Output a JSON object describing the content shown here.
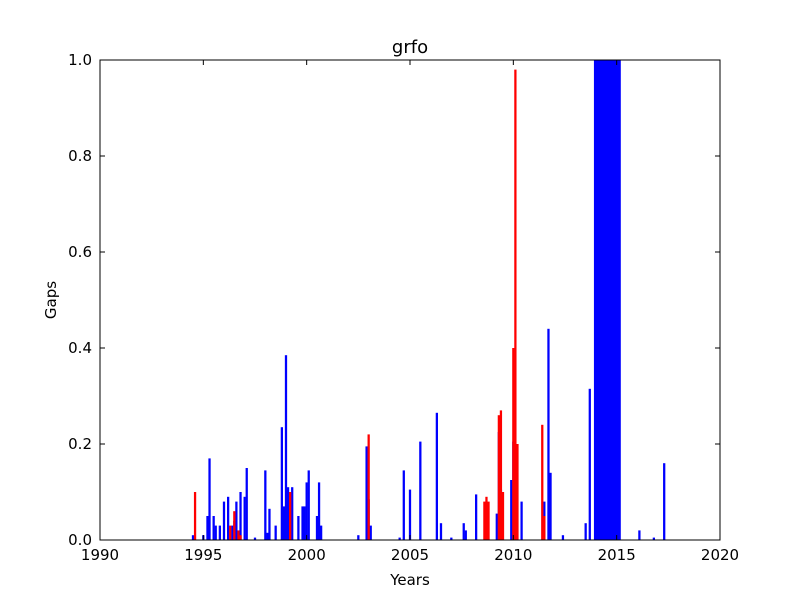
{
  "chart_data": {
    "type": "bar",
    "title": "grfo",
    "xlabel": "Years",
    "ylabel": "Gaps",
    "xlim": [
      1990,
      2020
    ],
    "ylim": [
      0.0,
      1.0
    ],
    "xticks": [
      1990,
      1995,
      2000,
      2005,
      2010,
      2015,
      2020
    ],
    "yticks": [
      0.0,
      0.2,
      0.4,
      0.6,
      0.8,
      1.0
    ],
    "xtick_labels": [
      "1990",
      "1995",
      "2000",
      "2005",
      "2010",
      "2015",
      "2020"
    ],
    "ytick_labels": [
      "0.0",
      "0.2",
      "0.4",
      "0.6",
      "0.8",
      "1.0"
    ],
    "grid": false,
    "colors": {
      "primary": "#0000ff",
      "secondary": "#ff0000"
    },
    "series": [
      {
        "color": "#ff0000",
        "x": [
          1994.6,
          1996.3,
          1996.5,
          1996.7,
          1996.8,
          1999.2,
          2003.0,
          2009.3,
          2009.4,
          2009.5,
          2010.0,
          2010.1,
          2010.2,
          2011.4,
          2011.5,
          2008.6,
          2008.7,
          2008.8
        ],
        "values": [
          0.1,
          0.03,
          0.06,
          0.02,
          0.01,
          0.1,
          0.22,
          0.26,
          0.27,
          0.1,
          0.4,
          0.98,
          0.2,
          0.24,
          0.05,
          0.08,
          0.09,
          0.08
        ]
      },
      {
        "color": "#0000ff",
        "x": [
          1994.5,
          1995.0,
          1995.2,
          1995.3,
          1995.5,
          1995.6,
          1995.8,
          1996.0,
          1996.2,
          1996.4,
          1996.5,
          1996.6,
          1996.8,
          1997.0,
          1997.1,
          1997.5,
          1998.0,
          1998.1,
          1998.2,
          1998.5,
          1998.8,
          1998.9,
          1999.0,
          1999.1,
          1999.3,
          1999.6,
          1999.8,
          1999.9,
          2000.0,
          2000.1,
          2000.5,
          2000.6,
          2000.7,
          2002.5,
          2002.9,
          2003.0,
          2003.1,
          2004.5,
          2004.7,
          2005.0,
          2005.5,
          2006.3,
          2006.5,
          2007.0,
          2007.6,
          2007.7,
          2008.2,
          2009.2,
          2009.3,
          2009.4,
          2009.9,
          2010.0,
          2010.1,
          2010.4,
          2011.5,
          2011.7,
          2011.8,
          2012.4,
          2013.5,
          2013.7,
          2014.5,
          2016.1,
          2016.8,
          2017.3
        ],
        "values": [
          0.01,
          0.01,
          0.05,
          0.17,
          0.05,
          0.03,
          0.03,
          0.08,
          0.09,
          0.03,
          0.04,
          0.08,
          0.1,
          0.09,
          0.15,
          0.005,
          0.145,
          0.015,
          0.065,
          0.03,
          0.235,
          0.07,
          0.385,
          0.11,
          0.11,
          0.05,
          0.07,
          0.07,
          0.12,
          0.145,
          0.05,
          0.12,
          0.03,
          0.01,
          0.195,
          0.085,
          0.03,
          0.005,
          0.145,
          0.105,
          0.205,
          0.265,
          0.035,
          0.005,
          0.035,
          0.02,
          0.095,
          0.055,
          0.225,
          0.105,
          0.125,
          0.205,
          0.08,
          0.08,
          0.08,
          0.44,
          0.14,
          0.01,
          0.035,
          0.315,
          1.0,
          0.02,
          0.005,
          0.16
        ]
      }
    ],
    "fills": [
      {
        "color": "#0000ff",
        "x_start": 2013.9,
        "x_end": 2015.2,
        "value": 1.0
      }
    ]
  }
}
